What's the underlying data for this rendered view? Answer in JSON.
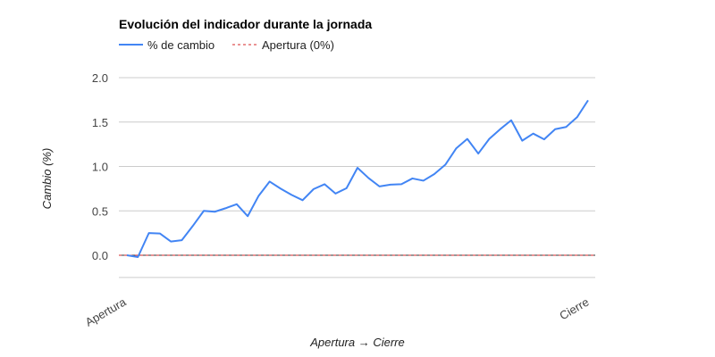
{
  "chart_data": {
    "type": "line",
    "title": "Evolución del indicador durante la jornada",
    "xlabel": "Apertura → Cierre",
    "ylabel": "Cambio (%)",
    "ylim": [
      -0.25,
      2.0
    ],
    "yticks": [
      "0.0",
      "0.5",
      "1.0",
      "1.5",
      "2.0"
    ],
    "xtick_labels": [
      "Apertura",
      "Cierre"
    ],
    "grid": true,
    "legend_position": "top-left",
    "colors": {
      "series": "#4285f4",
      "baseline": "#d62728",
      "grid": "#cccccc",
      "axis": "#333333"
    },
    "series": [
      {
        "name": "% de cambio",
        "values": [
          0.0,
          -0.02,
          0.25,
          0.245,
          0.155,
          0.17,
          0.33,
          0.5,
          0.49,
          0.53,
          0.575,
          0.44,
          0.67,
          0.83,
          0.75,
          0.68,
          0.62,
          0.745,
          0.8,
          0.695,
          0.755,
          0.985,
          0.87,
          0.775,
          0.795,
          0.8,
          0.865,
          0.84,
          0.915,
          1.02,
          1.205,
          1.31,
          1.145,
          1.31,
          1.42,
          1.52,
          1.29,
          1.37,
          1.305,
          1.42,
          1.445,
          1.555,
          1.745
        ]
      },
      {
        "name": "Apertura (0%)",
        "value": 0.0,
        "style": "dashed"
      }
    ]
  }
}
